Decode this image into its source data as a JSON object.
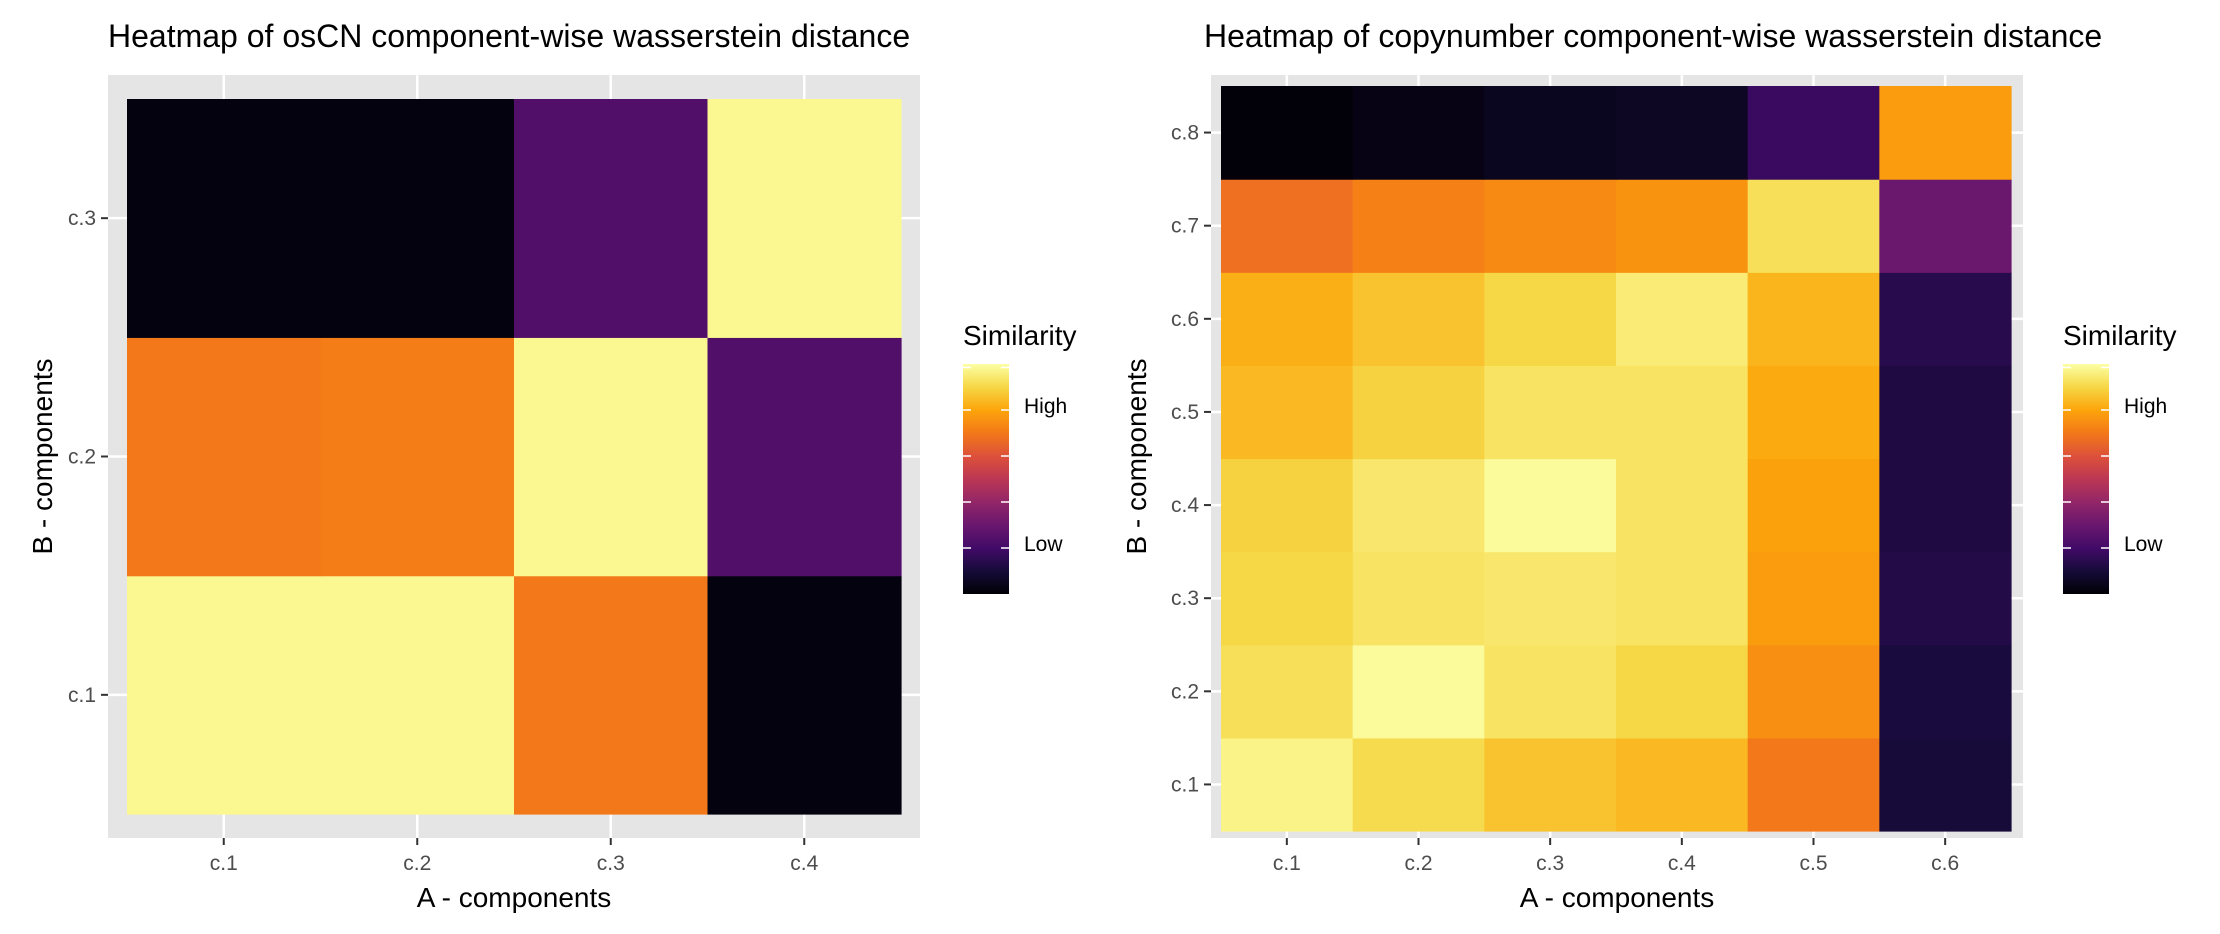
{
  "chart_data": [
    {
      "type": "heatmap",
      "title": "Heatmap of osCN component-wise wasserstein distance",
      "xlabel": "A - components",
      "ylabel": "B - components",
      "x_categories": [
        "c.1",
        "c.2",
        "c.3",
        "c.4"
      ],
      "y_categories": [
        "c.1",
        "c.2",
        "c.3"
      ],
      "values": [
        [
          0.98,
          0.98,
          0.7,
          0.02
        ],
        [
          0.7,
          0.71,
          0.98,
          0.24
        ],
        [
          0.02,
          0.02,
          0.24,
          0.98
        ]
      ],
      "value_note": "rows correspond to y_categories; values are relative similarity read from the color scale (0 = darkest, 1 = brightest)",
      "legend": {
        "title": "Similarity",
        "labels": [
          "High",
          "Low"
        ],
        "position": "right"
      },
      "grid": true,
      "colormap": "inferno"
    },
    {
      "type": "heatmap",
      "title": "Heatmap of copynumber component-wise wasserstein distance",
      "xlabel": "A - components",
      "ylabel": "B - components",
      "x_categories": [
        "c.1",
        "c.2",
        "c.3",
        "c.4",
        "c.5",
        "c.6"
      ],
      "y_categories": [
        "c.1",
        "c.2",
        "c.3",
        "c.4",
        "c.5",
        "c.6",
        "c.7",
        "c.8"
      ],
      "values": [
        [
          0.97,
          0.91,
          0.86,
          0.84,
          0.7,
          0.1
        ],
        [
          0.92,
          0.99,
          0.93,
          0.9,
          0.75,
          0.11
        ],
        [
          0.9,
          0.93,
          0.94,
          0.93,
          0.78,
          0.13
        ],
        [
          0.89,
          0.94,
          0.99,
          0.93,
          0.79,
          0.12
        ],
        [
          0.84,
          0.89,
          0.93,
          0.93,
          0.81,
          0.12
        ],
        [
          0.82,
          0.86,
          0.9,
          0.95,
          0.83,
          0.14
        ],
        [
          0.68,
          0.72,
          0.74,
          0.76,
          0.92,
          0.3
        ],
        [
          0.01,
          0.03,
          0.05,
          0.06,
          0.18,
          0.78
        ]
      ],
      "value_note": "rows correspond to y_categories; values are relative similarity read from the color scale (0 = darkest, 1 = brightest)",
      "legend": {
        "title": "Similarity",
        "labels": [
          "High",
          "Low"
        ],
        "position": "right"
      },
      "grid": true,
      "colormap": "inferno"
    }
  ],
  "colors": {
    "panel_background": "#e5e5e5",
    "gridline": "#ffffff",
    "tick_text": "#4d4d4d",
    "text": "#000000"
  }
}
